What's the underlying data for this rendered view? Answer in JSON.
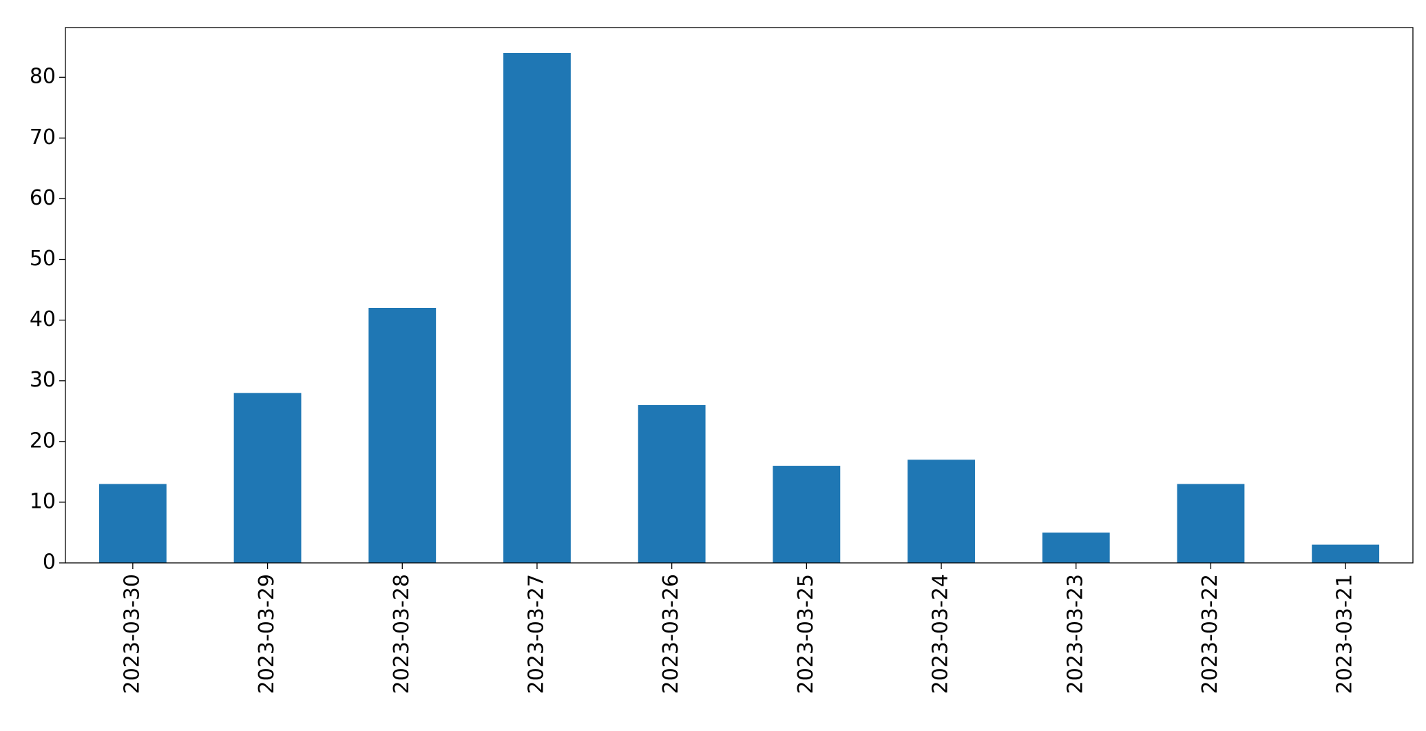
{
  "chart_data": {
    "type": "bar",
    "categories": [
      "2023-03-30",
      "2023-03-29",
      "2023-03-28",
      "2023-03-27",
      "2023-03-26",
      "2023-03-25",
      "2023-03-24",
      "2023-03-23",
      "2023-03-22",
      "2023-03-21"
    ],
    "values": [
      13,
      28,
      42,
      84,
      26,
      16,
      17,
      5,
      13,
      3
    ],
    "color": "#1f77b4",
    "ylim": [
      0,
      88.2
    ],
    "yticks": [
      0,
      10,
      20,
      30,
      40,
      50,
      60,
      70,
      80
    ],
    "grid": false
  }
}
